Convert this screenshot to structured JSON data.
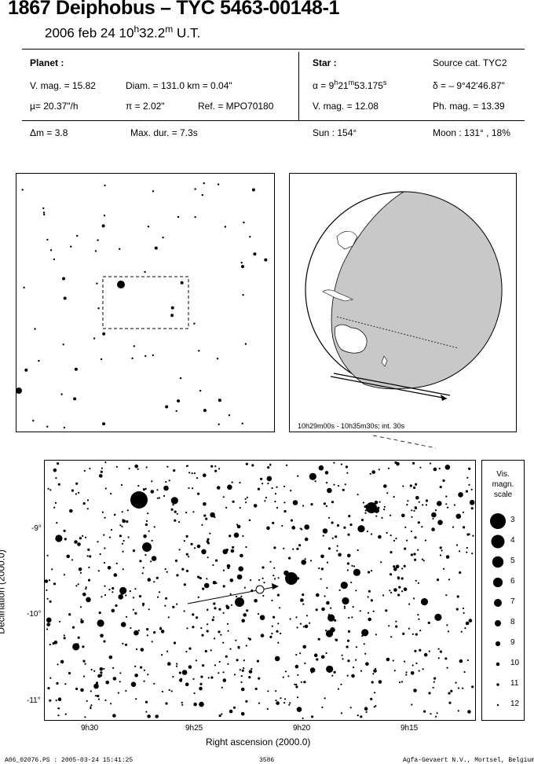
{
  "header": {
    "title": "1867 Deiphobus  –  TYC 5463-00148-1",
    "date": "2006 feb 24  10",
    "time_h": "h",
    "time_val": "32.2",
    "time_m": "m",
    "time_suffix": " U.T."
  },
  "planet": {
    "heading": "Planet :",
    "vmag": "V. mag. = 15.82",
    "diam": "Diam. = 131.0 km = 0.04\"",
    "mu": "µ=  20.37\"/h",
    "pi": "π =  2.02\"",
    "ref": "Ref. = MPO70180"
  },
  "star": {
    "heading": "Star :",
    "source": "Source cat.  TYC2",
    "alpha_pre": "α = 9",
    "alpha_h": "h",
    "alpha_mid": "21",
    "alpha_m": "m",
    "alpha_end": "53.175",
    "alpha_s": "s",
    "delta": "δ = – 9°42'46.87\"",
    "vmag": "V. mag. = 12.08",
    "phmag": "Ph. mag. = 13.39"
  },
  "event": {
    "dm": "Δm = 3.8",
    "maxdur": "Max. dur. = 7.3s",
    "sun": "Sun : 154°",
    "moon": "Moon : 131° , 18%"
  },
  "globe": {
    "caption": "10h29m00s - 10h35m30s; int. 30s"
  },
  "chart": {
    "xlabel": "Right ascension (2000.0)",
    "ylabel": "Declination (2000.0)",
    "xticks": [
      "9h30",
      "9h25",
      "9h20",
      "9h15"
    ],
    "yticks": [
      "-9°",
      "-10°",
      "-11°"
    ]
  },
  "legend": {
    "title": [
      "Vis.",
      "magn.",
      "scale"
    ],
    "entries": [
      "3",
      "4",
      "5",
      "6",
      "7",
      "8",
      "9",
      "10",
      "11",
      "12"
    ]
  },
  "footer": {
    "left": "A06_02076.PS : 2005-03-24 15:41:25",
    "mid": "3586",
    "right": "Agfa-Gevaert N.V., Mortsel, Belgium"
  }
}
